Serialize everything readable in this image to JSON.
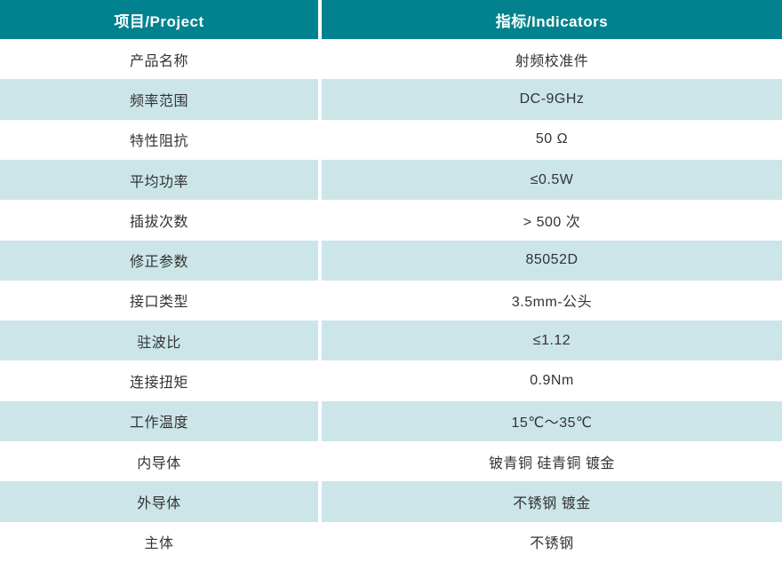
{
  "table": {
    "headers": {
      "project": "项目/Project",
      "indicators": "指标/Indicators"
    },
    "rows": [
      {
        "project": "产品名称",
        "indicator": "射频校准件"
      },
      {
        "project": "频率范围",
        "indicator": "DC-9GHz"
      },
      {
        "project": "特性阻抗",
        "indicator": "50 Ω"
      },
      {
        "project": "平均功率",
        "indicator": "≤0.5W"
      },
      {
        "project": "插拔次数",
        "indicator": "> 500 次"
      },
      {
        "project": "修正参数",
        "indicator": "85052D"
      },
      {
        "project": "接口类型",
        "indicator": "3.5mm-公头"
      },
      {
        "project": "驻波比",
        "indicator": "≤1.12"
      },
      {
        "project": "连接扭矩",
        "indicator": "0.9Nm"
      },
      {
        "project": "工作温度",
        "indicator": "15℃～35℃"
      },
      {
        "project": "内导体",
        "indicator": "铍青铜 硅青铜 镀金"
      },
      {
        "project": "外导体",
        "indicator": "不锈钢 镀金"
      },
      {
        "project": "主体",
        "indicator": "不锈钢"
      }
    ],
    "colors": {
      "header_bg": "#02828F",
      "header_text": "#FFFFFF",
      "row_bg": "#FFFFFF",
      "row_alt_bg": "#CBE5E8",
      "cell_text": "#333333",
      "divider": "#FFFFFF"
    }
  }
}
